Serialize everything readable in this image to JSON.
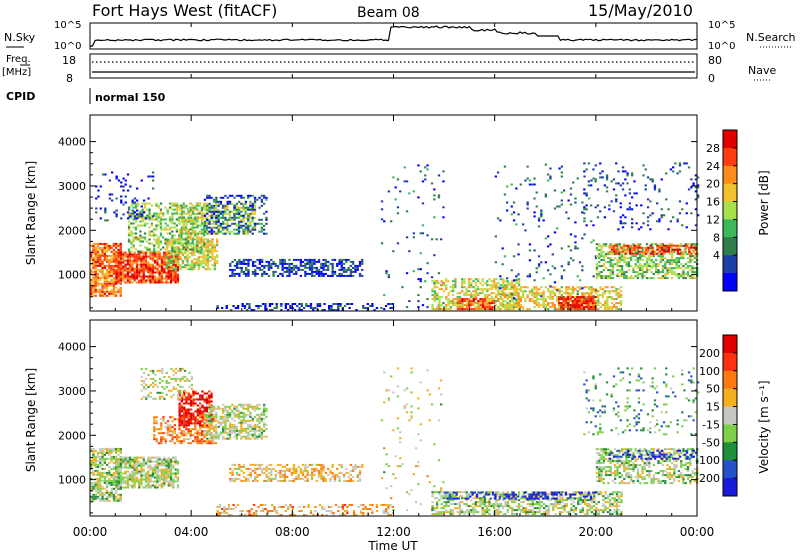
{
  "header": {
    "title": "Fort Hays West (fitACF)",
    "beam": "Beam 08",
    "date": "15/May/2010"
  },
  "noise_panel": {
    "left_label": "N.Sky",
    "left_ticks": [
      "10^5",
      "10^0"
    ],
    "right_ticks": [
      "10^5",
      "10^0"
    ],
    "right_label": "N.Search"
  },
  "freq_panel": {
    "left_label_line1": "Freq.",
    "left_label_line2": "[MHz]",
    "left_ticks": [
      "18",
      "8"
    ],
    "right_ticks": [
      "80",
      "0"
    ],
    "right_label": "Nave"
  },
  "cpid_panel": {
    "label": "CPID",
    "mode": "normal 150"
  },
  "chart_data": [
    {
      "type": "heatmap",
      "name": "power",
      "ylabel": "Slant Range [km]",
      "yticks": [
        "1000",
        "2000",
        "3000",
        "4000"
      ],
      "ylim": [
        180,
        4600
      ],
      "xlim": [
        0,
        24
      ],
      "colorbar": {
        "label": "Power [dB]",
        "ticks": [
          "4",
          "8",
          "12",
          "16",
          "20",
          "24",
          "28"
        ],
        "range": [
          0,
          32
        ],
        "colors": [
          "#0000ff",
          "#1f3fa8",
          "#2e7d4a",
          "#3cb85a",
          "#a6e04a",
          "#f2c230",
          "#ff8c1a",
          "#ff3b10",
          "#e00000"
        ]
      },
      "regions": [
        {
          "t0": 0.0,
          "t1": 1.2,
          "r0": 500,
          "r1": 1700,
          "level": 0.75,
          "density": 0.8
        },
        {
          "t0": 1.0,
          "t1": 3.5,
          "r0": 800,
          "r1": 1500,
          "level": 0.85,
          "density": 0.85
        },
        {
          "t0": 3.0,
          "t1": 5.0,
          "r0": 1100,
          "r1": 1800,
          "level": 0.55,
          "density": 0.7
        },
        {
          "t0": 1.5,
          "t1": 4.5,
          "r0": 1500,
          "r1": 2600,
          "level": 0.45,
          "density": 0.5
        },
        {
          "t0": 3.5,
          "t1": 6.5,
          "r0": 1900,
          "r1": 2600,
          "level": 0.5,
          "density": 0.5
        },
        {
          "t0": 4.5,
          "t1": 7.0,
          "r0": 1900,
          "r1": 2800,
          "level": 0.2,
          "density": 0.35
        },
        {
          "t0": 5.5,
          "t1": 10.8,
          "r0": 950,
          "r1": 1350,
          "level": 0.15,
          "density": 0.55
        },
        {
          "t0": 5.0,
          "t1": 12.0,
          "r0": 180,
          "r1": 350,
          "level": 0.1,
          "density": 0.35
        },
        {
          "t0": 0.2,
          "t1": 2.5,
          "r0": 2200,
          "r1": 3300,
          "level": 0.1,
          "density": 0.12
        },
        {
          "t0": 11.5,
          "t1": 14.0,
          "r0": 200,
          "r1": 3500,
          "level": 0.2,
          "density": 0.04
        },
        {
          "t0": 13.5,
          "t1": 17.0,
          "r0": 200,
          "r1": 900,
          "level": 0.55,
          "density": 0.5
        },
        {
          "t0": 14.5,
          "t1": 16.0,
          "r0": 200,
          "r1": 450,
          "level": 0.8,
          "density": 0.8
        },
        {
          "t0": 16.0,
          "t1": 21.0,
          "r0": 200,
          "r1": 700,
          "level": 0.6,
          "density": 0.55
        },
        {
          "t0": 18.5,
          "t1": 20.0,
          "r0": 200,
          "r1": 500,
          "level": 0.9,
          "density": 0.85
        },
        {
          "t0": 16.0,
          "t1": 20.0,
          "r0": 400,
          "r1": 3500,
          "level": 0.2,
          "density": 0.05
        },
        {
          "t0": 20.0,
          "t1": 24.0,
          "r0": 900,
          "r1": 1700,
          "level": 0.45,
          "density": 0.55
        },
        {
          "t0": 20.5,
          "t1": 24.0,
          "r0": 1450,
          "r1": 1650,
          "level": 0.85,
          "density": 0.6
        },
        {
          "t0": 19.5,
          "t1": 24.0,
          "r0": 2000,
          "r1": 3500,
          "level": 0.15,
          "density": 0.1
        }
      ]
    },
    {
      "type": "heatmap",
      "name": "velocity",
      "ylabel": "Slant Range [km]",
      "yticks": [
        "1000",
        "2000",
        "3000",
        "4000"
      ],
      "ylim": [
        180,
        4600
      ],
      "xlim": [
        0,
        24
      ],
      "xticks": [
        "00:00",
        "04:00",
        "08:00",
        "12:00",
        "16:00",
        "20:00",
        "00:00"
      ],
      "xlabel": "Time UT",
      "colorbar": {
        "label": "Velocity [m s⁻¹]",
        "ticks": [
          "200",
          "100",
          "50",
          "15",
          "-15",
          "-50",
          "-100",
          "-200"
        ],
        "range": [
          -250,
          250
        ],
        "colors": [
          "#1a1ad9",
          "#2552c8",
          "#1f8f3a",
          "#7ed04a",
          "#c8c8c0",
          "#f2b020",
          "#ff7a10",
          "#ff3010",
          "#e00000"
        ]
      },
      "regions": [
        {
          "t0": 0.0,
          "t1": 1.2,
          "r0": 500,
          "r1": 1700,
          "level": 0.45,
          "density": 0.7
        },
        {
          "t0": 1.0,
          "t1": 3.5,
          "r0": 800,
          "r1": 1500,
          "level": 0.45,
          "density": 0.75
        },
        {
          "t0": 2.5,
          "t1": 5.0,
          "r0": 1800,
          "r1": 2400,
          "level": 0.7,
          "density": 0.55
        },
        {
          "t0": 3.5,
          "t1": 4.8,
          "r0": 2200,
          "r1": 3000,
          "level": 0.92,
          "density": 0.6
        },
        {
          "t0": 4.5,
          "t1": 7.0,
          "r0": 1900,
          "r1": 2700,
          "level": 0.47,
          "density": 0.6
        },
        {
          "t0": 2.0,
          "t1": 4.0,
          "r0": 2800,
          "r1": 3500,
          "level": 0.5,
          "density": 0.3
        },
        {
          "t0": 5.5,
          "t1": 10.8,
          "r0": 950,
          "r1": 1350,
          "level": 0.6,
          "density": 0.5
        },
        {
          "t0": 5.0,
          "t1": 12.0,
          "r0": 180,
          "r1": 450,
          "level": 0.62,
          "density": 0.35
        },
        {
          "t0": 11.5,
          "t1": 14.0,
          "r0": 200,
          "r1": 3500,
          "level": 0.5,
          "density": 0.04
        },
        {
          "t0": 13.5,
          "t1": 21.0,
          "r0": 200,
          "r1": 700,
          "level": 0.45,
          "density": 0.55
        },
        {
          "t0": 14.0,
          "t1": 20.0,
          "r0": 550,
          "r1": 700,
          "level": 0.05,
          "density": 0.35
        },
        {
          "t0": 20.0,
          "t1": 24.0,
          "r0": 900,
          "r1": 1700,
          "level": 0.45,
          "density": 0.55
        },
        {
          "t0": 20.5,
          "t1": 24.0,
          "r0": 1450,
          "r1": 1650,
          "level": 0.05,
          "density": 0.35
        },
        {
          "t0": 19.5,
          "t1": 24.0,
          "r0": 2000,
          "r1": 3500,
          "level": 0.3,
          "density": 0.1
        }
      ]
    }
  ]
}
